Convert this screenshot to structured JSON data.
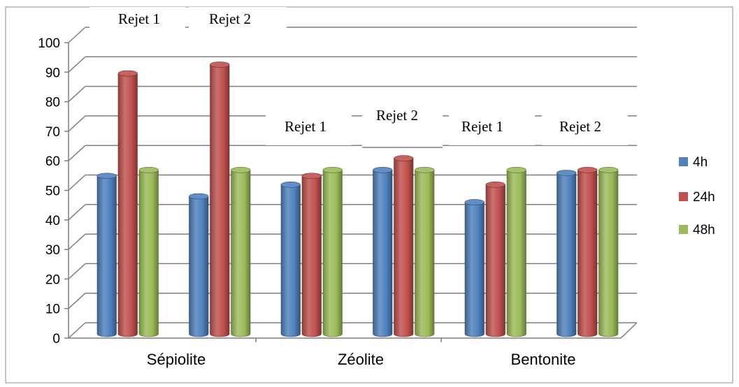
{
  "chart_data": {
    "type": "bar",
    "title": "",
    "xlabel": "",
    "ylabel": "",
    "ylim": [
      0,
      100
    ],
    "yticks": [
      "0",
      "10",
      "20",
      "30",
      "40",
      "50",
      "60",
      "70",
      "80",
      "90",
      "100"
    ],
    "groups": [
      {
        "name": "Sépiolite",
        "subgroups": [
          "Rejet 1",
          "Rejet 2"
        ]
      },
      {
        "name": "Zéolite",
        "subgroups": [
          "Rejet 1",
          "Rejet 2"
        ]
      },
      {
        "name": "Bentonite",
        "subgroups": [
          "Rejet 1",
          "Rejet 2"
        ]
      }
    ],
    "series": [
      {
        "name": "4h",
        "color": "#4F81BD",
        "values": [
          54,
          47,
          51,
          56,
          45,
          55
        ]
      },
      {
        "name": "24h",
        "color": "#C0504D",
        "values": [
          89,
          92,
          54,
          60,
          51,
          56
        ]
      },
      {
        "name": "48h",
        "color": "#9BBB59",
        "values": [
          56,
          56,
          56,
          56,
          56,
          56
        ]
      }
    ],
    "legend_position": "right",
    "grid": true,
    "style": "3d-cylinder"
  }
}
